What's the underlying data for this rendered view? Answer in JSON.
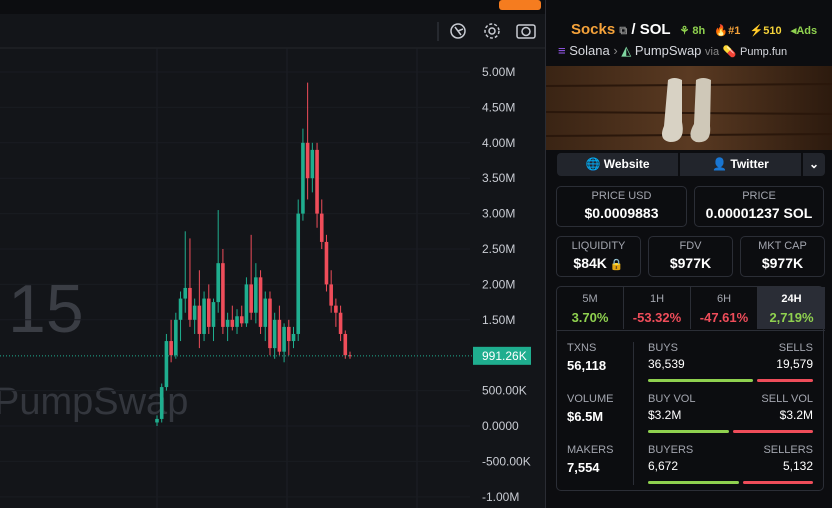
{
  "chart": {
    "type": "candlestick",
    "watermark_number": "15",
    "watermark_name": "PumpSwap",
    "ylim": [
      -1158000,
      5339000
    ],
    "yticks": [
      {
        "value": 5000000,
        "label": "5.00M"
      },
      {
        "value": 4500000,
        "label": "4.50M"
      },
      {
        "value": 4000000,
        "label": "4.00M"
      },
      {
        "value": 3500000,
        "label": "3.50M"
      },
      {
        "value": 3000000,
        "label": "3.00M"
      },
      {
        "value": 2500000,
        "label": "2.50M"
      },
      {
        "value": 2000000,
        "label": "2.00M"
      },
      {
        "value": 1500000,
        "label": "1.50M"
      },
      {
        "value": 500000,
        "label": "500.00K"
      },
      {
        "value": 0,
        "label": "0.0000"
      },
      {
        "value": -500000,
        "label": "-500.00K"
      },
      {
        "value": -1000000,
        "label": "-1.00M"
      }
    ],
    "last_price": {
      "value": 991260,
      "label": "991.26K"
    },
    "up_color": "#1fae8f",
    "down_color": "#ef4d5a",
    "open": [
      50000,
      100000,
      550000,
      1200000,
      1000000,
      1500000,
      1800000,
      1950000,
      1500000,
      1700000,
      1300000,
      1800000,
      1400000,
      1750000,
      2300000,
      1400000,
      1500000,
      1400000,
      1550000,
      1450000,
      2000000,
      1600000,
      2100000,
      1400000,
      1800000,
      1100000,
      1500000,
      1050000,
      1400000,
      1200000,
      1300000,
      3000000,
      4000000,
      3500000,
      3900000,
      3000000,
      2600000,
      2000000,
      1700000,
      1600000,
      1300000,
      1000000
    ],
    "high": [
      150000,
      600000,
      1300000,
      1500000,
      1600000,
      1900000,
      2750000,
      2650000,
      1800000,
      2200000,
      1900000,
      2000000,
      1800000,
      3050000,
      2500000,
      1600000,
      1700000,
      1650000,
      1700000,
      2100000,
      2700000,
      2300000,
      2200000,
      1900000,
      1900000,
      1600000,
      1700000,
      1450000,
      1500000,
      1400000,
      3200000,
      4200000,
      4850000,
      4000000,
      4000000,
      3200000,
      2700000,
      2200000,
      1800000,
      1700000,
      1350000,
      1050000
    ],
    "low": [
      0,
      50000,
      500000,
      900000,
      950000,
      1200000,
      1600000,
      1400000,
      1300000,
      1100000,
      1200000,
      1300000,
      1200000,
      1600000,
      1300000,
      1200000,
      1350000,
      1300000,
      1400000,
      1400000,
      1500000,
      1450000,
      1300000,
      1200000,
      1000000,
      950000,
      1000000,
      900000,
      1000000,
      1100000,
      1200000,
      2900000,
      3200000,
      3300000,
      2800000,
      2500000,
      1900000,
      1600000,
      1400000,
      1200000,
      950000,
      950000
    ],
    "close": [
      100000,
      550000,
      1200000,
      1000000,
      1500000,
      1800000,
      1950000,
      1500000,
      1700000,
      1300000,
      1800000,
      1400000,
      1750000,
      2300000,
      1400000,
      1500000,
      1400000,
      1550000,
      1450000,
      2000000,
      1600000,
      2100000,
      1400000,
      1800000,
      1100000,
      1500000,
      1050000,
      1400000,
      1200000,
      1300000,
      3000000,
      4000000,
      3500000,
      3900000,
      3000000,
      2600000,
      2000000,
      1700000,
      1600000,
      1300000,
      1000000,
      991260
    ]
  },
  "token": {
    "name": "Socks",
    "quote": "/ SOL",
    "age": "8h",
    "rank": "#1",
    "boosts": "510",
    "ads": "Ads",
    "chain": "Solana",
    "dex": "PumpSwap",
    "via": "via",
    "launchpad": "Pump.fun"
  },
  "links": [
    "Website",
    "Twitter"
  ],
  "price": {
    "usd_label": "PRICE USD",
    "usd": "$0.0009883",
    "native_label": "PRICE",
    "native": "0.00001237 SOL"
  },
  "metrics": [
    {
      "label": "LIQUIDITY",
      "value": "$84K"
    },
    {
      "label": "FDV",
      "value": "$977K"
    },
    {
      "label": "MKT CAP",
      "value": "$977K"
    }
  ],
  "changes": [
    {
      "period": "5M",
      "value": "3.70%"
    },
    {
      "period": "1H",
      "value": "-53.32%"
    },
    {
      "period": "6H",
      "value": "-47.61%"
    },
    {
      "period": "24H",
      "value": "2,719%"
    }
  ],
  "stats": [
    {
      "label": "TXNS",
      "value": "56,118",
      "left_label": "BUYS",
      "left": "36,539",
      "right_label": "SELLS",
      "right": "19,579"
    },
    {
      "label": "VOLUME",
      "value": "$6.5M",
      "left_label": "BUY VOL",
      "left": "$3.2M",
      "right_label": "SELL VOL",
      "right": "$3.2M"
    },
    {
      "label": "MAKERS",
      "value": "7,554",
      "left_label": "BUYERS",
      "left": "6,672",
      "right_label": "SELLERS",
      "right": "5,132"
    }
  ]
}
